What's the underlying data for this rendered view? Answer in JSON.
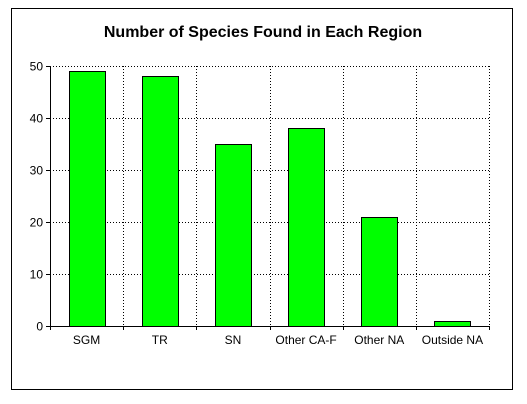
{
  "chart_data": {
    "type": "bar",
    "title": "Number of Species Found in Each Region",
    "xlabel": "",
    "ylabel": "",
    "categories": [
      "SGM",
      "TR",
      "SN",
      "Other CA-F",
      "Other NA",
      "Outside NA"
    ],
    "values": [
      49,
      48,
      35,
      38,
      21,
      1
    ],
    "ylim": [
      0,
      50
    ],
    "yticks": [
      "0",
      "10",
      "20",
      "30",
      "40",
      "50"
    ],
    "ytick_values": [
      0,
      10,
      20,
      30,
      40,
      50
    ],
    "grid": true,
    "legend": "none",
    "bar_color": "#00ff00",
    "bar_edge_color": "#000000",
    "grid_color": "#000000"
  }
}
